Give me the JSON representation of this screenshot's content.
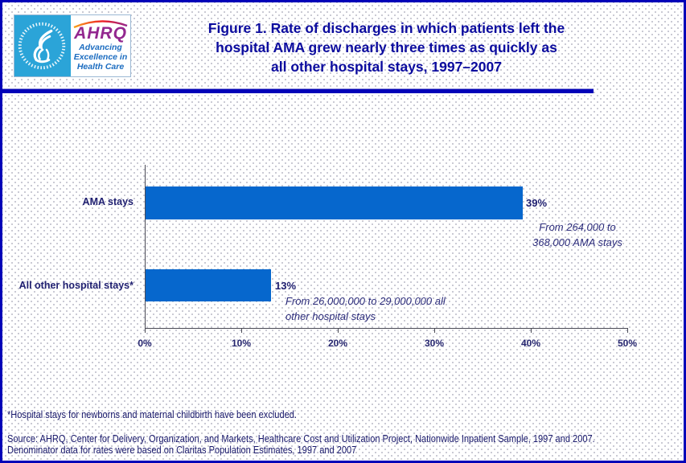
{
  "header": {
    "logo": {
      "abbr": "AHRQ",
      "tagline": [
        "Advancing",
        "Excellence in",
        "Health Care"
      ]
    },
    "title_lines": [
      "Figure 1. Rate of discharges in which patients left the",
      "hospital AMA grew nearly three times as quickly as",
      "all other hospital stays, 1997–2007"
    ]
  },
  "chart_data": {
    "type": "bar",
    "orientation": "horizontal",
    "title": "Figure 1. Rate of discharges in which patients left the hospital AMA grew nearly three times as quickly as all other hospital stays, 1997–2007",
    "categories": [
      "AMA stays",
      "All other hospital stays*"
    ],
    "values": [
      39,
      13
    ],
    "value_labels": [
      "39%",
      "13%"
    ],
    "annotation_lines": [
      [
        "From 264,000 to",
        "368,000 AMA stays"
      ],
      [
        "From 26,000,000 to 29,000,000 all",
        "other hospital stays"
      ]
    ],
    "x_ticks": [
      "0%",
      "10%",
      "20%",
      "30%",
      "40%",
      "50%"
    ],
    "xlim": [
      0,
      50
    ],
    "xlabel": "",
    "ylabel": "",
    "grid": false,
    "legend": false,
    "bar_color": "#0667cd"
  },
  "footnotes": {
    "note": "*Hospital stays for newborns and maternal childbirth have been excluded.",
    "source_line1": "Source: AHRQ, Center for Delivery, Organization, and Markets, Healthcare Cost and Utilization Project, Nationwide Inpatient Sample, 1997 and 2007.",
    "source_line2": "Denominator data for rates were based on Claritas Population Estimates, 1997 and 2007"
  },
  "colors": {
    "bar": "#0667cd",
    "frame_border": "#0202b8",
    "title_text": "#0b0b9e",
    "hhs_seal_background": "#2ba4d8",
    "ahrq_wordmark": "#93278f",
    "tagline_text": "#1b6cc0"
  }
}
